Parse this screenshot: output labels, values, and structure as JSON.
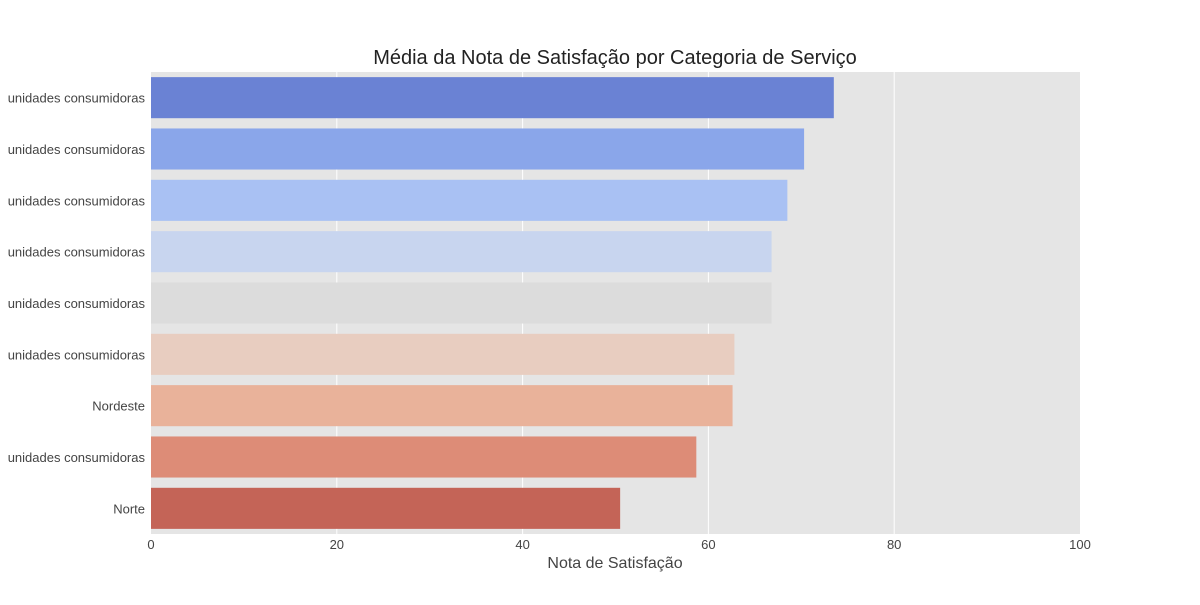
{
  "chart_data": {
    "type": "bar",
    "orientation": "horizontal",
    "title": "Média da Nota de Satisfação por Categoria de Serviço",
    "xlabel": "Nota de Satisfação",
    "ylabel": "",
    "xlim": [
      0,
      100
    ],
    "x_ticks": [
      0,
      20,
      40,
      60,
      80,
      100
    ],
    "grid": true,
    "categories": [
      "unidades consumidoras",
      "unidades consumidoras",
      "unidades consumidoras",
      "unidades consumidoras",
      "unidades consumidoras",
      "unidades consumidoras",
      "Nordeste",
      "unidades consumidoras",
      "Norte"
    ],
    "values": [
      73.5,
      70.3,
      68.5,
      66.8,
      66.8,
      62.8,
      62.6,
      58.7,
      50.5
    ],
    "colors": [
      "#6a82d4",
      "#8aa6ea",
      "#a9c1f3",
      "#c8d5ef",
      "#dcdcdc",
      "#e8cdc0",
      "#e9b29a",
      "#dd8c77",
      "#c46457"
    ],
    "background_color": "#e5e5e5",
    "grid_color": "#ffffff"
  }
}
